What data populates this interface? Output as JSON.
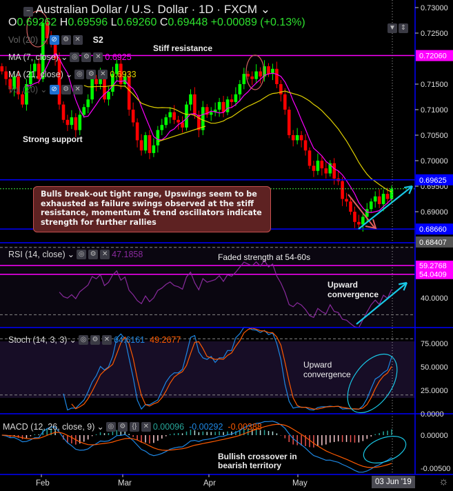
{
  "header": {
    "title": "Australian Dollar / U.S. Dollar · 1D · FXCM",
    "open_label": "O",
    "open": "0.69262",
    "high_label": "H",
    "high": "0.69596",
    "low_label": "L",
    "low": "0.69260",
    "close_label": "C",
    "close": "0.69448",
    "change": "+0.00089 (+0.13%)"
  },
  "legend": {
    "vol1": "Vol (20)",
    "s2": "S2",
    "ma7": "MA (7, close)",
    "ma7_value": "0.6925",
    "ma21": "MA (21, close)",
    "ma21_value": "0.6933",
    "vol2": "Vol (20)"
  },
  "annotations": {
    "stiff": "Stiff resistance",
    "support": "Strong support",
    "box": "Bulls break-out tight range, Upswings seem to be exhausted as failure swings observed at the stiff resistance, momentum & trend oscillators indicate strength for further rallies",
    "rsi_note": "Faded strength at 54-60s",
    "rsi_conv": "Upward convergence",
    "stoch_conv": "Upward convergence",
    "macd_note": "Bullish crossover in bearish territory"
  },
  "colors": {
    "up": "#00ff00",
    "down": "#ff0000",
    "ma7": "#ff00ff",
    "ma21": "#e0d000",
    "rsi": "#8a2a9e",
    "stoch_k": "#1e88e5",
    "stoch_d": "#ff5a00",
    "macd": "#1e88e5",
    "signal": "#ff5a00",
    "accent": "#0000ff",
    "resistance": "#ff00ff",
    "arrow": "#19c8e6"
  },
  "chart_data": [
    {
      "type": "candlestick",
      "name": "price",
      "x_ticks": [
        "Feb",
        "Mar",
        "Apr",
        "May"
      ],
      "crosshair_label": "03 Jun '19",
      "y_ticks": [
        "0.73000",
        "0.72500",
        "0.71500",
        "0.71000",
        "0.70500",
        "0.70000",
        "0.69500",
        "0.69000"
      ],
      "ylim": [
        0.6835,
        0.7315
      ],
      "levels": [
        {
          "label": "0.72060",
          "value": 0.7206,
          "color": "#ff00ff"
        },
        {
          "label": "0.69625",
          "value": 0.69625,
          "color": "#0000ff"
        },
        {
          "label": "0.68660",
          "value": 0.6866,
          "color": "#0000ff"
        },
        {
          "label": "0.68407",
          "value": 0.68407,
          "color": "#555"
        }
      ],
      "close": [
        0.7175,
        0.716,
        0.714,
        0.7165,
        0.713,
        0.711,
        0.715,
        0.7175,
        0.719,
        0.716,
        0.727,
        0.724,
        0.723,
        0.72,
        0.711,
        0.708,
        0.707,
        0.7085,
        0.706,
        0.709,
        0.7105,
        0.712,
        0.716,
        0.715,
        0.717,
        0.712,
        0.7135,
        0.717,
        0.719,
        0.715,
        0.7165,
        0.71,
        0.7075,
        0.704,
        0.702,
        0.705,
        0.7015,
        0.703,
        0.706,
        0.707,
        0.7085,
        0.7095,
        0.708,
        0.7075,
        0.7065,
        0.711,
        0.713,
        0.709,
        0.706,
        0.7105,
        0.709,
        0.7095,
        0.71,
        0.7115,
        0.7095,
        0.712,
        0.7115,
        0.713,
        0.715,
        0.717,
        0.7165,
        0.716,
        0.7175,
        0.7165,
        0.7185,
        0.717,
        0.718,
        0.715,
        0.713,
        0.71,
        0.705,
        0.704,
        0.705,
        0.704,
        0.702,
        0.699,
        0.698,
        0.7,
        0.6985,
        0.6975,
        0.6995,
        0.6965,
        0.696,
        0.6925,
        0.692,
        0.69,
        0.688,
        0.6875,
        0.689,
        0.6905,
        0.692,
        0.693,
        0.6915,
        0.6935,
        0.6925,
        0.6945
      ]
    },
    {
      "type": "line",
      "name": "RSI (14, close)",
      "value": "47.1858",
      "y_ticks": [
        "40.0000"
      ],
      "ylim": [
        22,
        77
      ],
      "levels": [
        {
          "label": "59.2768",
          "value": 59.2768
        },
        {
          "label": "54.0409",
          "value": 54.0409
        }
      ],
      "bands": [
        70,
        30
      ]
    },
    {
      "type": "line",
      "name": "Stoch (14, 3, 3)",
      "k_value": "64.6161",
      "d_value": "49.2677",
      "y_ticks": [
        "75.0000",
        "50.0000",
        "25.0000",
        "0.0000"
      ],
      "ylim": [
        0,
        93
      ],
      "bands": [
        80,
        20
      ]
    },
    {
      "type": "bar+line",
      "name": "MACD (12, 26, close, 9)",
      "hist_value": "0.00096",
      "macd_value": "-0.00292",
      "signal_value": "-0.00388",
      "y_ticks": [
        "0.00000",
        "-0.00500"
      ],
      "ylim": [
        -0.0058,
        0.0025
      ]
    }
  ]
}
